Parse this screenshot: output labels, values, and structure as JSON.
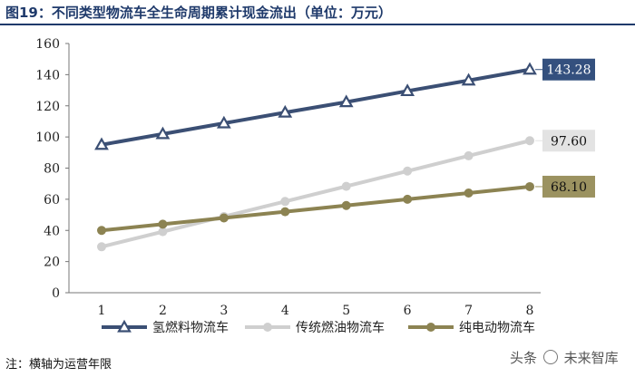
{
  "page": {
    "title": "图19：不同类型物流车全生命周期累计现金流出（单位：万元）",
    "footnote": "注：横轴为运营年限",
    "watermark_prefix": "头条",
    "watermark_suffix": "未来智库"
  },
  "chart_data": {
    "type": "line",
    "x": [
      1,
      2,
      3,
      4,
      5,
      6,
      7,
      8
    ],
    "ylim": [
      0,
      160
    ],
    "yticks": [
      0,
      20,
      40,
      60,
      80,
      100,
      120,
      140,
      160
    ],
    "grid": false,
    "legend_position": "bottom",
    "series": [
      {
        "name": "氢燃料物流车",
        "values": [
          95,
          101.9,
          108.8,
          115.7,
          122.4,
          129.5,
          136.3,
          143.28
        ],
        "color": "#3b4f74",
        "marker": "triangle",
        "end_label": "143.28",
        "label_bg": "#34507e",
        "label_fg": "#ffffff"
      },
      {
        "name": "传统燃油物流车",
        "values": [
          29.5,
          39.2,
          48.9,
          58.6,
          68.3,
          78.1,
          87.9,
          97.6
        ],
        "color": "#cfcfcf",
        "marker": "circle",
        "end_label": "97.60",
        "label_bg": "#e3e3e3",
        "label_fg": "#111111"
      },
      {
        "name": "纯电动物流车",
        "values": [
          40,
          44,
          48,
          52,
          56,
          60,
          64,
          68.1
        ],
        "color": "#8c8352",
        "marker": "circle",
        "end_label": "68.10",
        "label_bg": "#9b9260",
        "label_fg": "#111111"
      }
    ]
  }
}
